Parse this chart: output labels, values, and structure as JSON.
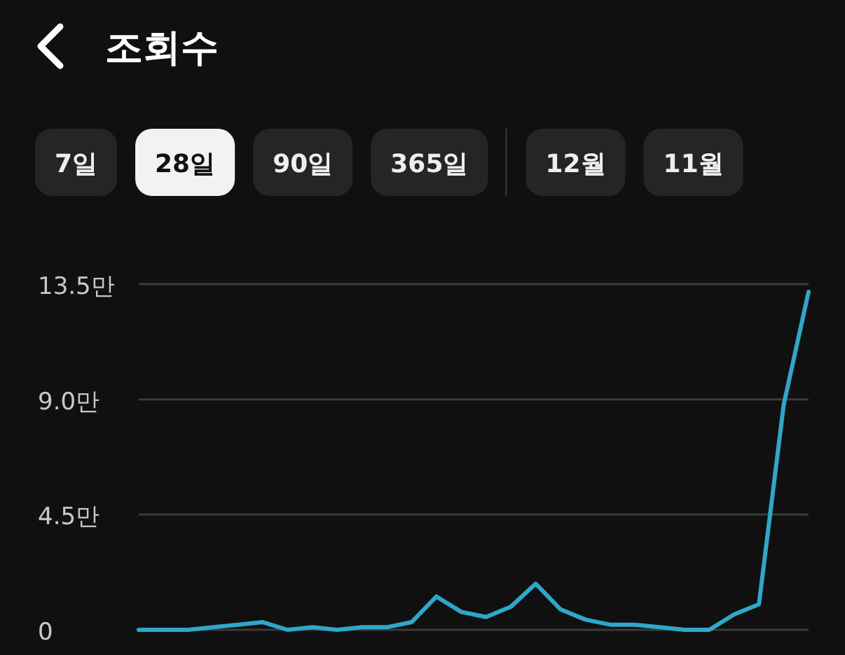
{
  "chart_data": {
    "type": "line",
    "title": "조회수",
    "annotations": [
      "7일",
      "28일",
      "90일",
      "365일",
      "12월",
      "11월"
    ],
    "categories": [
      null,
      null,
      null,
      null,
      null,
      null,
      null,
      null,
      null,
      null,
      null,
      null,
      null,
      null,
      null,
      null,
      null,
      null,
      null,
      null,
      null,
      null,
      null,
      null,
      null,
      null,
      null,
      null
    ],
    "series": [
      {
        "color": "#2ea8c8",
        "values": [
          0,
          0,
          0,
          0.1,
          0.2,
          0.3,
          0,
          0.1,
          0,
          0.1,
          0.1,
          0.3,
          1.3,
          0.7,
          0.5,
          0.9,
          1.8,
          0.8,
          0.4,
          0.2,
          0.2,
          0.1,
          0,
          0,
          0.6,
          1.0,
          8.8,
          13.2
        ]
      }
    ],
    "ylim": [
      0,
      13.5
    ],
    "yticks": [
      0,
      {
        "value": 4.5,
        "label": "4.5만"
      },
      {
        "value": 9,
        "label": "9.0만"
      },
      {
        "value": 13.5,
        "label": "13.5만"
      }
    ],
    "grid": "y",
    "marker": "none",
    "line_style": "solid"
  }
}
